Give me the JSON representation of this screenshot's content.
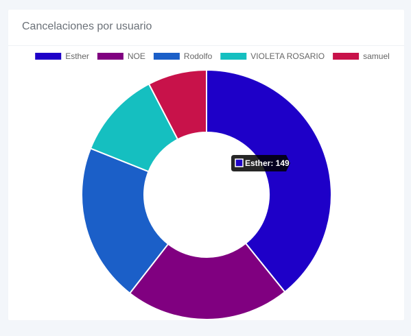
{
  "card": {
    "title": "Cancelaciones por usuario"
  },
  "chart_data": {
    "type": "pie",
    "variant": "doughnut",
    "legend_position": "top",
    "categories": [
      "Esther",
      "NOE",
      "Rodolfo",
      "VIOLETA ROSARIO",
      "samuel"
    ],
    "values": [
      149,
      81,
      78,
      43,
      29
    ],
    "colors": [
      "#1e00c8",
      "#800080",
      "#1b5fc8",
      "#15bfc0",
      "#c8124a"
    ],
    "tooltip": {
      "category": "Esther",
      "value": 149,
      "text": "Esther: 149"
    }
  }
}
